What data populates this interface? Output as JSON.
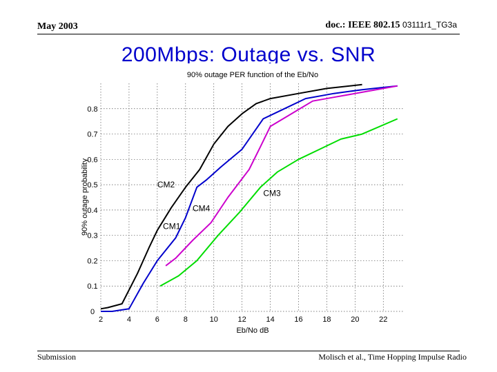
{
  "header": {
    "date": "May 2003",
    "doc_label": "doc.: IEEE 802.15",
    "doc_number": "03111r1_TG3a"
  },
  "slide": {
    "title": "200Mbps: Outage vs. SNR"
  },
  "footer": {
    "left": "Submission",
    "right": "Molisch et al., Time Hopping Impulse Radio"
  },
  "chart_data": {
    "type": "line",
    "title": "90% outage PER function of the Eb/No",
    "xlabel": "Eb/No dB",
    "ylabel": "90% outage probability",
    "xlim": [
      2,
      23.5
    ],
    "ylim": [
      0,
      0.9
    ],
    "xticks": [
      2,
      4,
      6,
      8,
      10,
      12,
      14,
      16,
      18,
      20,
      22
    ],
    "xtick_labels": [
      "2",
      "4",
      "6",
      "8",
      "10",
      "12",
      "14",
      "16",
      "18",
      "20",
      "22"
    ],
    "yticks": [
      0,
      0.1,
      0.2,
      0.3,
      0.4,
      0.5,
      0.6,
      0.7,
      0.8
    ],
    "ytick_labels": [
      "0",
      "0.1",
      "0.2",
      "0.3",
      "0.4",
      "0.5",
      "0.6",
      "0.7",
      "0.8"
    ],
    "grid": true,
    "legend": "none",
    "series": [
      {
        "name": "CM1",
        "color": "#000000",
        "points": [
          [
            2,
            0.01
          ],
          [
            2.5,
            0.015
          ],
          [
            3.5,
            0.03
          ],
          [
            4.6,
            0.15
          ],
          [
            5.4,
            0.25
          ],
          [
            6,
            0.32
          ],
          [
            7,
            0.41
          ],
          [
            8,
            0.49
          ],
          [
            9,
            0.56
          ],
          [
            10,
            0.66
          ],
          [
            11,
            0.73
          ],
          [
            12,
            0.78
          ],
          [
            13,
            0.82
          ],
          [
            14,
            0.84
          ],
          [
            16,
            0.86
          ],
          [
            18,
            0.88
          ],
          [
            20.5,
            0.895
          ]
        ],
        "label": "CM1",
        "label_x": 6.4,
        "label_y": 0.325
      },
      {
        "name": "CM2",
        "color": "#0000cc",
        "points": [
          [
            2,
            0.0
          ],
          [
            2.8,
            0.0
          ],
          [
            4,
            0.01
          ],
          [
            5,
            0.11
          ],
          [
            6,
            0.2
          ],
          [
            7.3,
            0.29
          ],
          [
            8,
            0.37
          ],
          [
            8.8,
            0.49
          ],
          [
            9.5,
            0.52
          ],
          [
            10.5,
            0.57
          ],
          [
            12,
            0.64
          ],
          [
            13.5,
            0.76
          ],
          [
            15,
            0.8
          ],
          [
            16.5,
            0.84
          ],
          [
            18.5,
            0.86
          ],
          [
            20.5,
            0.875
          ],
          [
            23,
            0.89
          ]
        ],
        "label": "CM2",
        "label_x": 6.0,
        "label_y": 0.49
      },
      {
        "name": "CM4",
        "color": "#cc00cc",
        "points": [
          [
            6.6,
            0.18
          ],
          [
            7.3,
            0.21
          ],
          [
            8.5,
            0.28
          ],
          [
            9.8,
            0.35
          ],
          [
            11,
            0.45
          ],
          [
            12.5,
            0.56
          ],
          [
            13.3,
            0.65
          ],
          [
            14,
            0.73
          ],
          [
            15.5,
            0.78
          ],
          [
            17,
            0.83
          ],
          [
            18.5,
            0.845
          ],
          [
            20.5,
            0.865
          ],
          [
            23,
            0.89
          ]
        ],
        "label": "CM4",
        "label_x": 8.5,
        "label_y": 0.395
      },
      {
        "name": "CM3",
        "color": "#00dd00",
        "points": [
          [
            6.2,
            0.1
          ],
          [
            7.5,
            0.14
          ],
          [
            8.8,
            0.2
          ],
          [
            10.3,
            0.3
          ],
          [
            11.8,
            0.39
          ],
          [
            13.3,
            0.49
          ],
          [
            14.5,
            0.55
          ],
          [
            16,
            0.6
          ],
          [
            17.5,
            0.64
          ],
          [
            19,
            0.68
          ],
          [
            20.5,
            0.7
          ],
          [
            23,
            0.76
          ]
        ],
        "label": "CM3",
        "label_x": 13.5,
        "label_y": 0.455
      }
    ]
  }
}
